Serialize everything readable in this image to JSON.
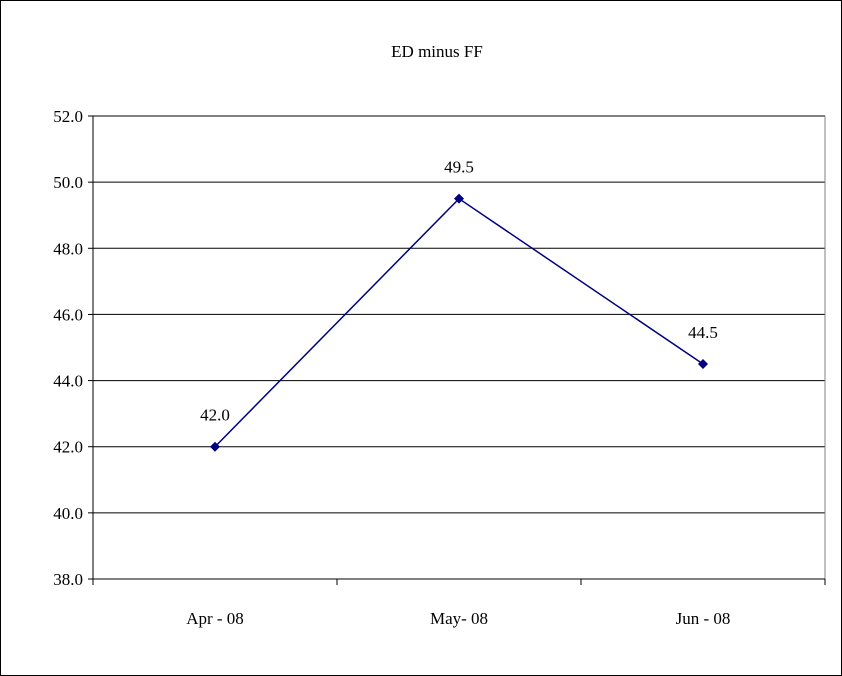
{
  "chart_data": {
    "type": "line",
    "title": "ED minus FF",
    "xlabel": "",
    "ylabel": "",
    "categories": [
      "Apr - 08",
      "May- 08",
      "Jun - 08"
    ],
    "series": [
      {
        "values": [
          42.0,
          49.5,
          44.5
        ],
        "data_labels": [
          "42.0",
          "49.5",
          "44.5"
        ]
      }
    ],
    "ylim": [
      38,
      52
    ],
    "y_ticks": [
      "38.0",
      "40.0",
      "42.0",
      "44.0",
      "46.0",
      "48.0",
      "50.0",
      "52.0"
    ],
    "grid": "horizontal",
    "legend": "none",
    "line_color": "#000080",
    "marker": "diamond"
  }
}
